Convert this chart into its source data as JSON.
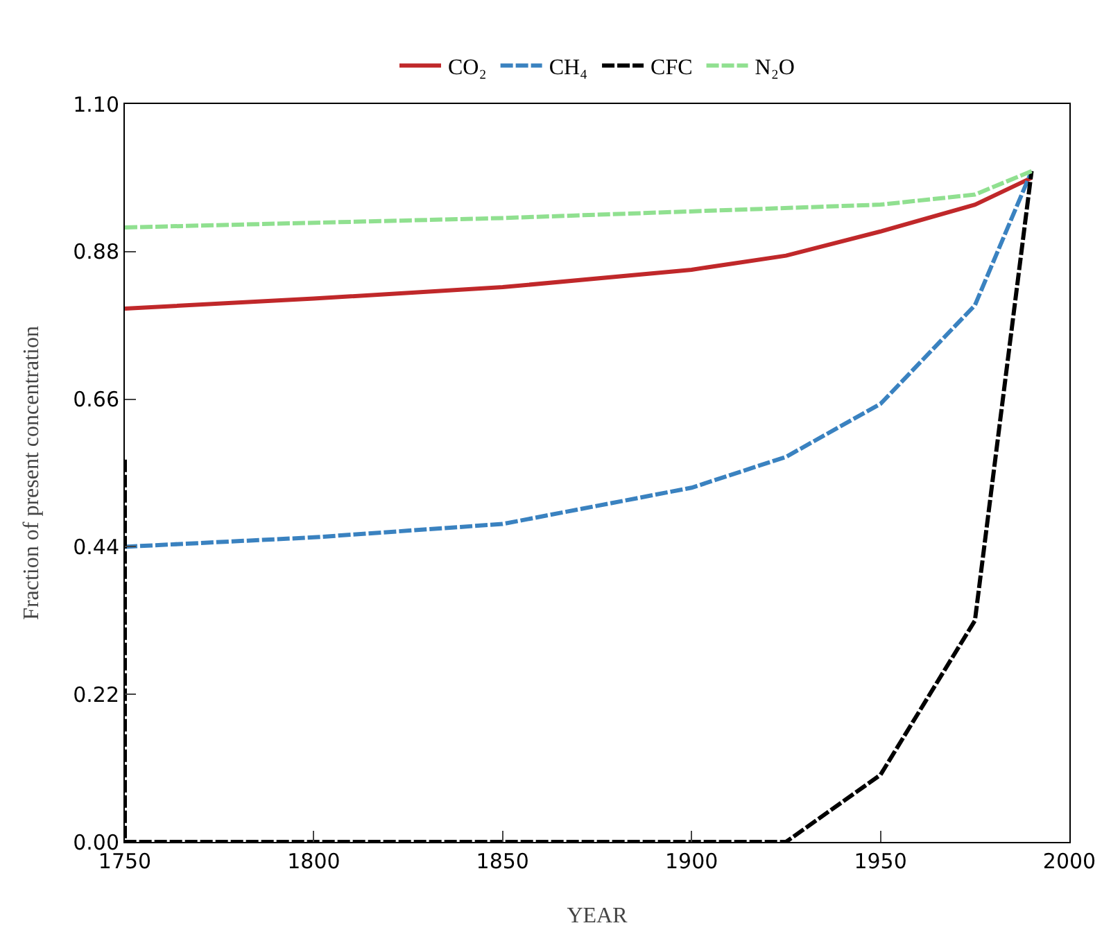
{
  "chart_data": {
    "type": "line",
    "xlabel": "YEAR",
    "ylabel": "Fraction of present concentration",
    "xlim": [
      1750,
      2000
    ],
    "xticks": [
      1750,
      1800,
      1850,
      1900,
      1950,
      2000
    ],
    "ylim": [
      0,
      1.1
    ],
    "yticks": [
      {
        "value": 0,
        "label": "0.00"
      },
      0.22,
      0.44,
      0.66,
      0.88,
      {
        "value": 1.1,
        "label": "1.10"
      }
    ],
    "grid": false,
    "legend": "top",
    "marker": "none",
    "series": [
      {
        "name": "CO₂",
        "color": "#c0282a",
        "line_style": "solid",
        "x": [
          1750,
          1800,
          1850,
          1900,
          1925,
          1950,
          1975,
          1990
        ],
        "values": [
          0.795,
          0.81,
          0.827,
          0.853,
          0.874,
          0.91,
          0.95,
          0.99
        ]
      },
      {
        "name": "CH₄",
        "color": "#3a82c0",
        "line_style": "dashed",
        "x": [
          1750,
          1800,
          1850,
          1900,
          1925,
          1950,
          1975,
          1990
        ],
        "values": [
          0.44,
          0.454,
          0.474,
          0.528,
          0.574,
          0.653,
          0.8,
          1.0
        ]
      },
      {
        "name": "CFC",
        "color": "#000000",
        "line_style": "dashed",
        "x": [
          1750,
          1750,
          1925,
          1950,
          1975,
          1990
        ],
        "values": [
          0.57,
          0,
          0,
          0.1,
          0.33,
          1.0
        ]
      },
      {
        "name": "N₂O",
        "color": "#90e090",
        "line_style": "dashed",
        "x": [
          1750,
          1850,
          1950,
          1975,
          1990
        ],
        "values": [
          0.916,
          0.93,
          0.95,
          0.965,
          1.0
        ]
      }
    ]
  }
}
